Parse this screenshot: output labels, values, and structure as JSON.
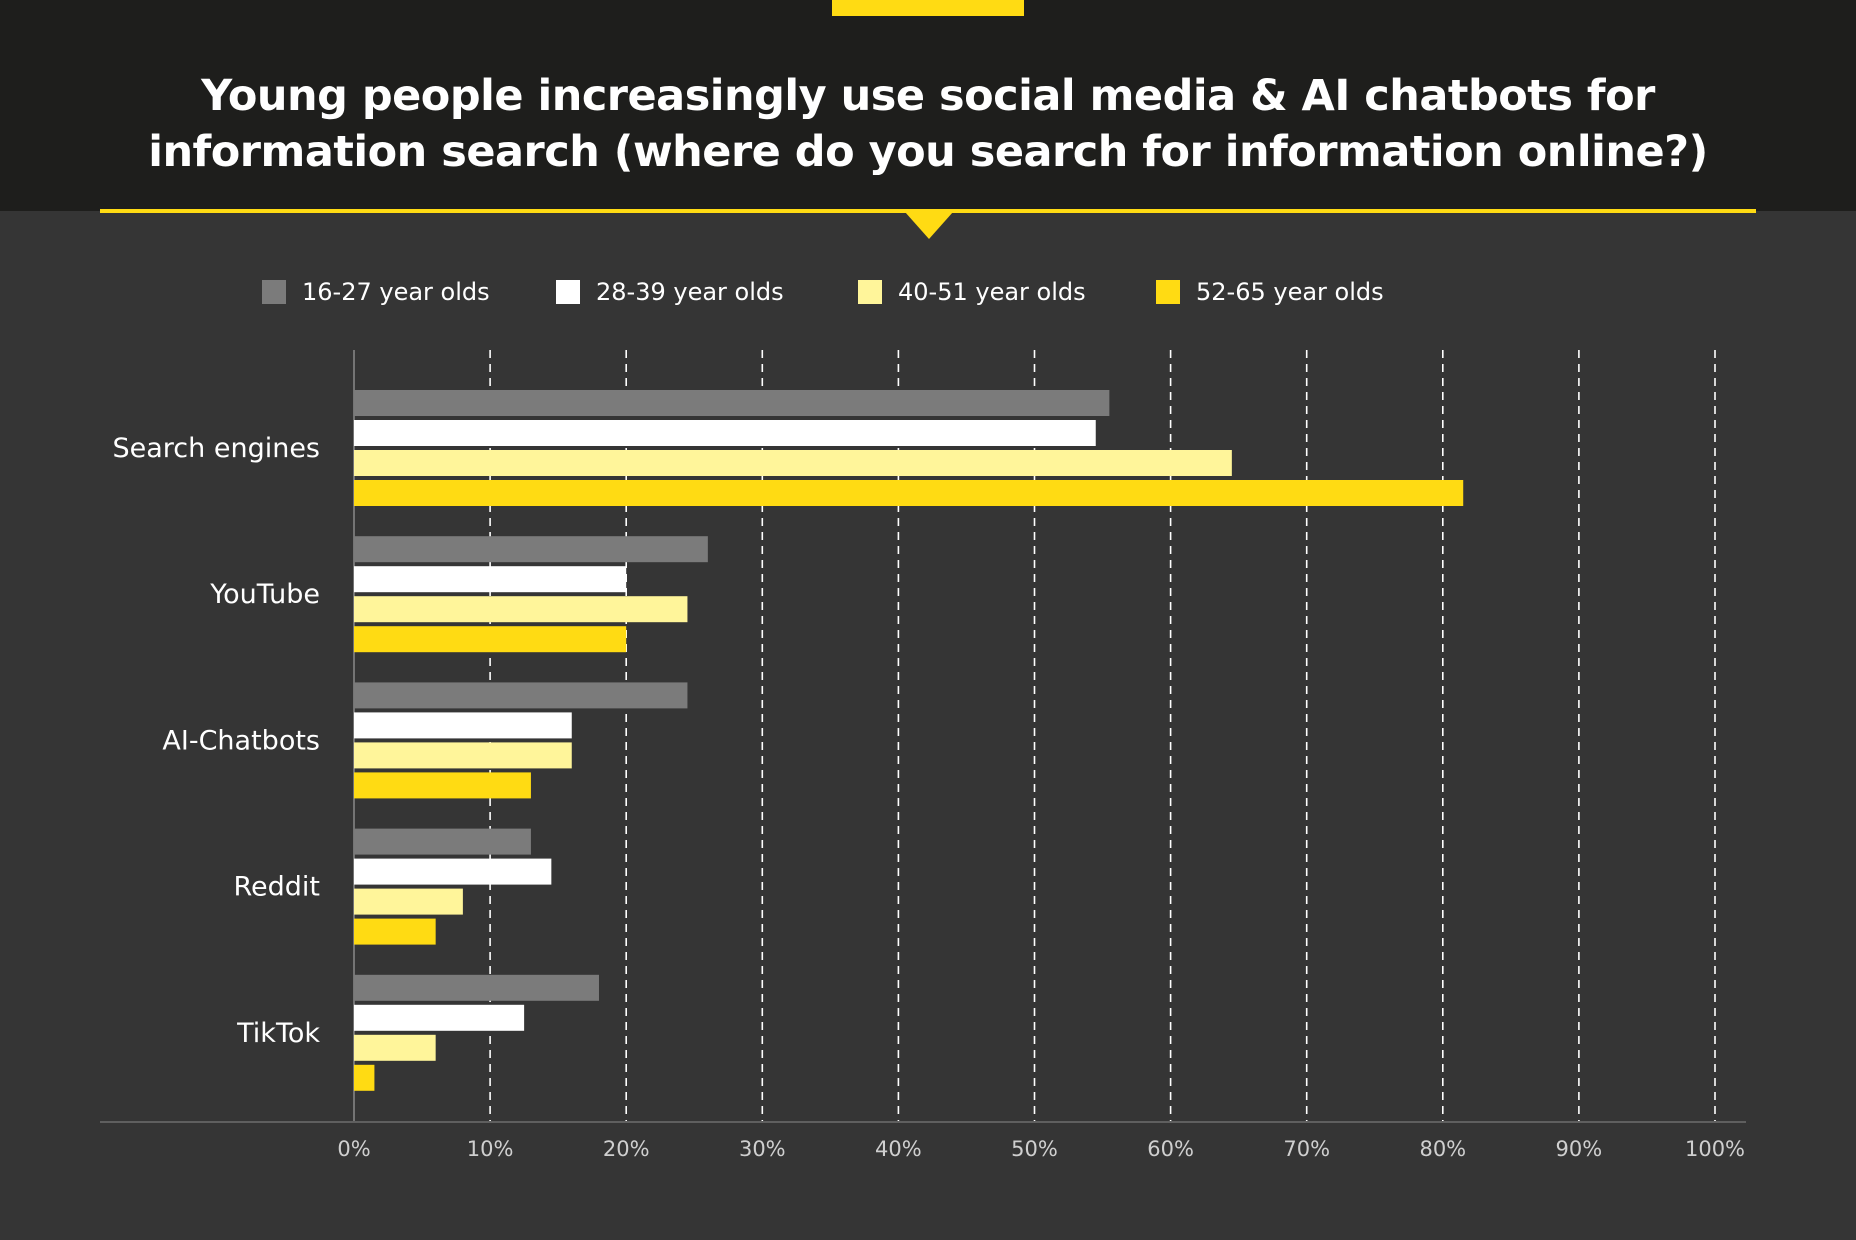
{
  "colors": {
    "background": "#353535",
    "header_background": "#1e1e1c",
    "accent": "#ffdb13",
    "series": [
      "#7b7b7b",
      "#ffffff",
      "#fff59a",
      "#ffdb13"
    ]
  },
  "header": {
    "title": "Young people increasingly use social media & AI chatbots for information search (where do you search for information online?)"
  },
  "chart_data": {
    "type": "bar",
    "orientation": "horizontal",
    "title": "Young people increasingly use social media & AI chatbots for information search (where do you search for information online?)",
    "categories": [
      "Search engines",
      "YouTube",
      "AI-Chatbots",
      "Reddit",
      "TikTok"
    ],
    "series": [
      {
        "name": "16-27 year olds",
        "values": [
          55.5,
          26,
          24.5,
          13,
          18
        ]
      },
      {
        "name": "28-39 year olds",
        "values": [
          54.5,
          20,
          16,
          14.5,
          12.5
        ]
      },
      {
        "name": "40-51 year olds",
        "values": [
          64.5,
          24.5,
          16,
          8,
          6
        ]
      },
      {
        "name": "52-65 year olds",
        "values": [
          81.5,
          20,
          13,
          6,
          1.5
        ]
      }
    ],
    "xlim": [
      0,
      100
    ],
    "x_ticks": [
      "0%",
      "10%",
      "20%",
      "30%",
      "40%",
      "50%",
      "60%",
      "70%",
      "80%",
      "90%",
      "100%"
    ],
    "xlabel": "",
    "ylabel": "",
    "grid": "vertical dashed",
    "legend": "top"
  }
}
